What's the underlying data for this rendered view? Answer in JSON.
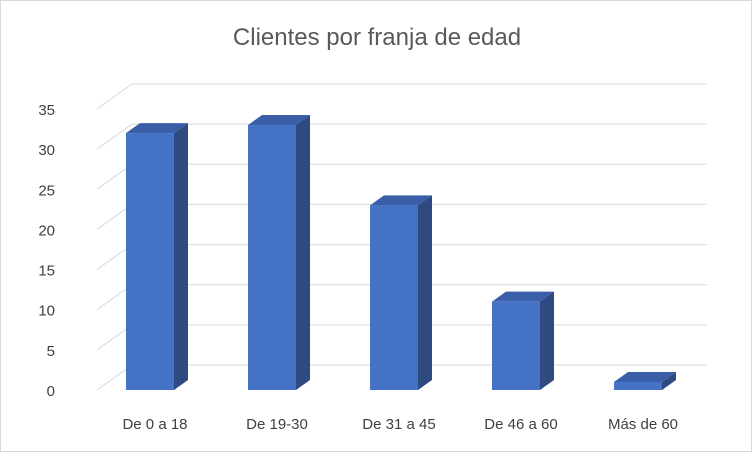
{
  "chart_data": {
    "type": "bar",
    "title": "Clientes por franja de edad",
    "categories": [
      "De 0 a 18",
      "De 19-30",
      "De 31 a 45",
      "De 46 a 60",
      "Más de 60"
    ],
    "values": [
      32,
      33,
      23,
      11,
      1
    ],
    "ylim": [
      0,
      35
    ],
    "yticks": [
      0,
      5,
      10,
      15,
      20,
      25,
      30,
      35
    ],
    "grid": true,
    "legend": "none",
    "style": "3d-column",
    "colors": {
      "front": "#4472c4",
      "side": "#2e4a80",
      "top": "#3a5fa8",
      "grid": "#d9d9d9"
    }
  }
}
